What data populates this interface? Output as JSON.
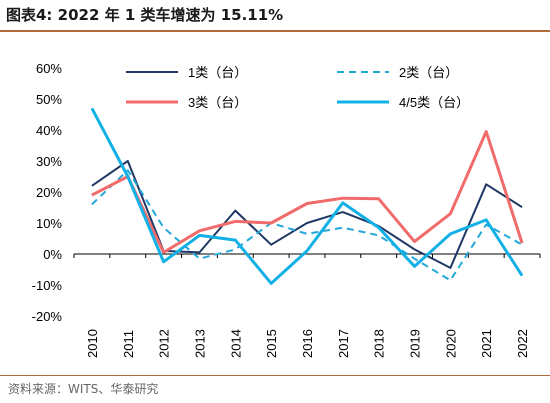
{
  "figure": {
    "title": "图表4:  2022 年 1 类车增速为 15.11%",
    "source": "资料来源：WITS、华泰研究"
  },
  "colors": {
    "rule": "#b06b3a",
    "axis": "#000000"
  },
  "chart_data": {
    "type": "line",
    "title": "",
    "xlabel": "",
    "ylabel": "",
    "x": [
      "2010",
      "2011",
      "2012",
      "2013",
      "2014",
      "2015",
      "2016",
      "2017",
      "2018",
      "2019",
      "2020",
      "2021",
      "2022"
    ],
    "ylim": [
      -0.2,
      0.6
    ],
    "yticks": [
      -0.2,
      -0.1,
      0,
      0.1,
      0.2,
      0.3,
      0.4,
      0.5,
      0.6
    ],
    "ytick_labels": [
      "-20%",
      "-10%",
      "0%",
      "10%",
      "20%",
      "30%",
      "40%",
      "50%",
      "60%"
    ],
    "grid": false,
    "legend": "top, two columns",
    "series": [
      {
        "name": "1类（台）",
        "color": "#1f3864",
        "dash": "solid",
        "width": 2,
        "values": [
          0.22,
          0.3,
          0.01,
          0.005,
          0.14,
          0.03,
          0.1,
          0.135,
          0.09,
          0.015,
          -0.045,
          0.225,
          0.151
        ]
      },
      {
        "name": "2类（台）",
        "color": "#22a7d9",
        "dash": "dashed",
        "width": 2,
        "values": [
          0.16,
          0.27,
          0.085,
          -0.015,
          0.015,
          0.1,
          0.065,
          0.085,
          0.06,
          -0.015,
          -0.085,
          0.095,
          0.03
        ]
      },
      {
        "name": "3类（台）",
        "color": "#f26b6b",
        "dash": "solid",
        "width": 3,
        "values": [
          0.19,
          0.25,
          0.005,
          0.075,
          0.105,
          0.1,
          0.163,
          0.18,
          0.178,
          0.04,
          0.13,
          0.395,
          0.035
        ]
      },
      {
        "name": "4/5类（台）",
        "color": "#13b0e6",
        "dash": "solid",
        "width": 3,
        "values": [
          0.47,
          0.25,
          -0.025,
          0.06,
          0.045,
          -0.095,
          0.01,
          0.165,
          0.085,
          -0.04,
          0.065,
          0.11,
          -0.07
        ]
      }
    ]
  }
}
